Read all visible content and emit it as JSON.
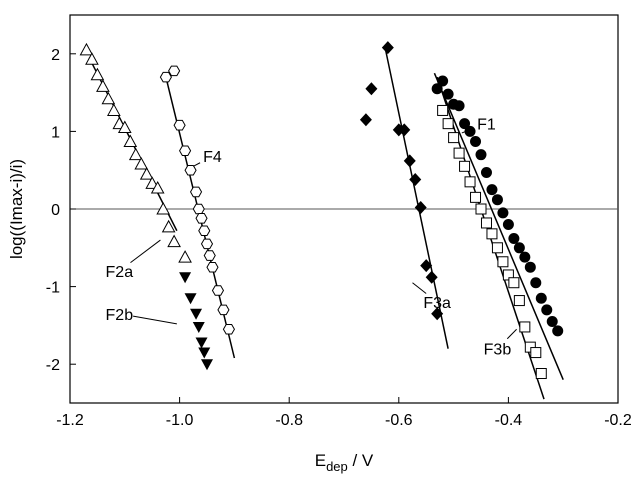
{
  "chart_data": {
    "type": "scatter",
    "xlabel_main": "E",
    "xlabel_sub": "dep",
    "xlabel_rest": " / V",
    "ylabel": "log((Imax-i)/i)",
    "xlim": [
      -1.2,
      -0.2
    ],
    "ylim": [
      -2.5,
      2.5
    ],
    "xticks": [
      -1.2,
      -1.0,
      -0.8,
      -0.6,
      -0.4,
      -0.2
    ],
    "xtick_labels": [
      "-1.2",
      "-1.0",
      "-0.8",
      "-0.6",
      "-0.4",
      "-0.2"
    ],
    "yticks": [
      -2,
      -1,
      0,
      1,
      2
    ],
    "ytick_labels": [
      "-2",
      "-1",
      "0",
      "1",
      "2"
    ],
    "zero_line": 0,
    "series": [
      {
        "label": "F1",
        "marker": "circle-filled",
        "points": [
          [
            -0.53,
            1.55
          ],
          [
            -0.52,
            1.65
          ],
          [
            -0.51,
            1.48
          ],
          [
            -0.5,
            1.35
          ],
          [
            -0.49,
            1.33
          ],
          [
            -0.48,
            1.1
          ],
          [
            -0.47,
            1.0
          ],
          [
            -0.46,
            0.87
          ],
          [
            -0.45,
            0.7
          ],
          [
            -0.44,
            0.47
          ],
          [
            -0.43,
            0.25
          ],
          [
            -0.42,
            0.12
          ],
          [
            -0.41,
            -0.05
          ],
          [
            -0.4,
            -0.2
          ],
          [
            -0.39,
            -0.38
          ],
          [
            -0.38,
            -0.5
          ],
          [
            -0.37,
            -0.62
          ],
          [
            -0.36,
            -0.75
          ],
          [
            -0.35,
            -0.95
          ],
          [
            -0.34,
            -1.15
          ],
          [
            -0.33,
            -1.3
          ],
          [
            -0.32,
            -1.45
          ],
          [
            -0.31,
            -1.57
          ]
        ],
        "fit": [
          [
            -0.535,
            1.75
          ],
          [
            -0.3,
            -2.2
          ]
        ]
      },
      {
        "label": "F3a",
        "marker": "diamond-filled",
        "points": [
          [
            -0.66,
            1.15
          ],
          [
            -0.65,
            1.55
          ],
          [
            -0.62,
            2.08
          ],
          [
            -0.6,
            1.02
          ],
          [
            -0.59,
            1.02
          ],
          [
            -0.58,
            0.62
          ],
          [
            -0.57,
            0.38
          ],
          [
            -0.56,
            0.02
          ],
          [
            -0.55,
            -0.73
          ],
          [
            -0.54,
            -0.88
          ],
          [
            -0.53,
            -1.35
          ]
        ],
        "fit": [
          [
            -0.625,
            2.08
          ],
          [
            -0.51,
            -1.8
          ]
        ]
      },
      {
        "label": "F3b",
        "marker": "square-open",
        "points": [
          [
            -0.52,
            1.27
          ],
          [
            -0.51,
            1.1
          ],
          [
            -0.5,
            0.92
          ],
          [
            -0.49,
            0.72
          ],
          [
            -0.48,
            0.55
          ],
          [
            -0.47,
            0.35
          ],
          [
            -0.46,
            0.15
          ],
          [
            -0.45,
            0.0
          ],
          [
            -0.44,
            -0.18
          ],
          [
            -0.43,
            -0.32
          ],
          [
            -0.42,
            -0.5
          ],
          [
            -0.41,
            -0.68
          ],
          [
            -0.4,
            -0.85
          ],
          [
            -0.39,
            -0.95
          ],
          [
            -0.38,
            -1.18
          ],
          [
            -0.37,
            -1.52
          ],
          [
            -0.36,
            -1.78
          ],
          [
            -0.35,
            -1.85
          ],
          [
            -0.34,
            -2.12
          ]
        ],
        "fit": [
          [
            -0.53,
            1.7
          ],
          [
            -0.335,
            -2.45
          ]
        ]
      },
      {
        "label": "F4",
        "marker": "hexagon-open",
        "points": [
          [
            -1.025,
            1.7
          ],
          [
            -1.01,
            1.78
          ],
          [
            -1.0,
            1.08
          ],
          [
            -0.99,
            0.75
          ],
          [
            -0.98,
            0.5
          ],
          [
            -0.97,
            0.22
          ],
          [
            -0.965,
            0.0
          ],
          [
            -0.96,
            -0.12
          ],
          [
            -0.955,
            -0.28
          ],
          [
            -0.95,
            -0.45
          ],
          [
            -0.945,
            -0.6
          ],
          [
            -0.94,
            -0.75
          ],
          [
            -0.93,
            -1.05
          ],
          [
            -0.92,
            -1.3
          ],
          [
            -0.91,
            -1.55
          ]
        ],
        "fit": [
          [
            -1.025,
            1.7
          ],
          [
            -0.9,
            -1.92
          ]
        ]
      },
      {
        "label": "F2a",
        "marker": "triangle-open",
        "points": [
          [
            -1.17,
            2.05
          ],
          [
            -1.16,
            1.93
          ],
          [
            -1.15,
            1.73
          ],
          [
            -1.14,
            1.58
          ],
          [
            -1.13,
            1.42
          ],
          [
            -1.12,
            1.27
          ],
          [
            -1.11,
            1.1
          ],
          [
            -1.1,
            1.05
          ],
          [
            -1.09,
            0.87
          ],
          [
            -1.08,
            0.7
          ],
          [
            -1.07,
            0.58
          ],
          [
            -1.06,
            0.45
          ],
          [
            -1.05,
            0.33
          ],
          [
            -1.04,
            0.27
          ],
          [
            -1.03,
            0.0
          ],
          [
            -1.02,
            -0.23
          ],
          [
            -1.01,
            -0.42
          ],
          [
            -0.99,
            -0.62
          ]
        ],
        "fit": [
          [
            -1.165,
            1.95
          ],
          [
            -1.005,
            -0.28
          ]
        ]
      },
      {
        "label": "F2b",
        "marker": "triangle-down-filled",
        "points": [
          [
            -0.99,
            -0.88
          ],
          [
            -0.98,
            -1.15
          ],
          [
            -0.97,
            -1.35
          ],
          [
            -0.965,
            -1.52
          ],
          [
            -0.96,
            -1.72
          ],
          [
            -0.955,
            -1.85
          ],
          [
            -0.95,
            -2.0
          ]
        ]
      }
    ],
    "annotations": [
      {
        "text": "F1",
        "at": [
          -0.44,
          1.1
        ],
        "anchor": [
          -0.485,
          0.98
        ]
      },
      {
        "text": "F4",
        "at": [
          -0.94,
          0.68
        ],
        "anchor": [
          -0.975,
          0.55
        ]
      },
      {
        "text": "F2a",
        "at": [
          -1.11,
          -0.8
        ],
        "anchor": [
          -1.035,
          -0.4
        ]
      },
      {
        "text": "F2b",
        "at": [
          -1.11,
          -1.35
        ],
        "anchor": [
          -1.005,
          -1.48
        ]
      },
      {
        "text": "F3a",
        "at": [
          -0.53,
          -1.2
        ],
        "anchor": [
          -0.575,
          -0.95
        ]
      },
      {
        "text": "F3b",
        "at": [
          -0.42,
          -1.8
        ],
        "anchor": [
          -0.385,
          -1.55
        ]
      }
    ]
  }
}
